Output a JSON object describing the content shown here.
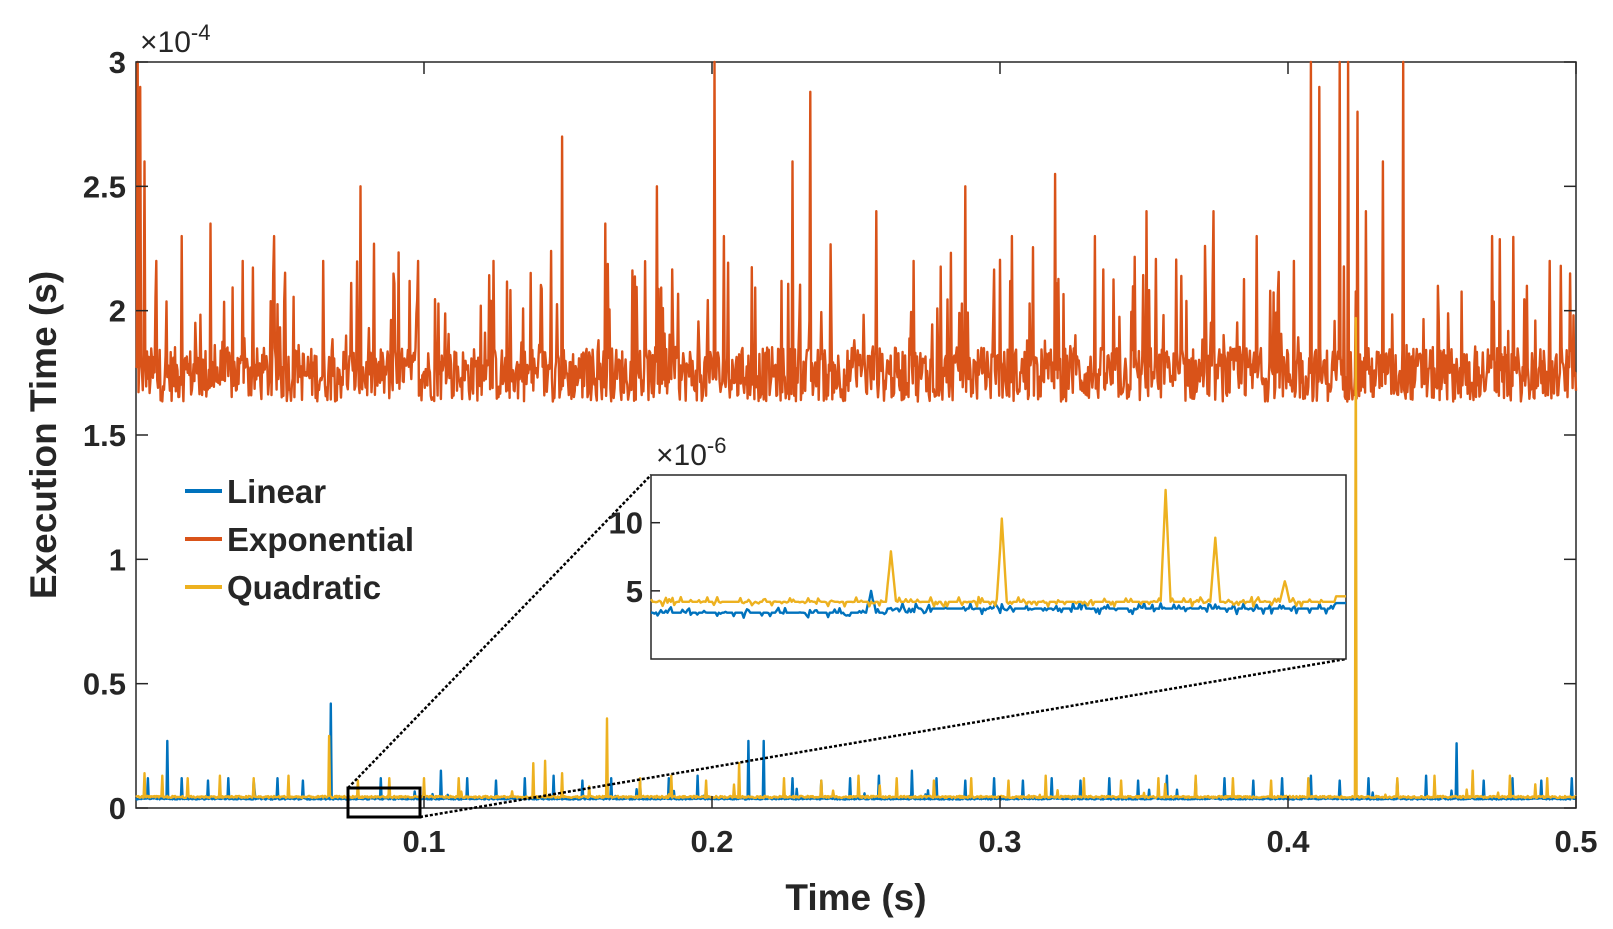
{
  "chart_data": {
    "type": "line",
    "title": "",
    "xlabel": "Time (s)",
    "ylabel": "Execution Time (s)",
    "xlim": [
      0,
      0.5
    ],
    "ylim": [
      0,
      0.0003
    ],
    "y_exponent_label": "×10",
    "y_exponent_power": "-4",
    "x_ticks": [
      0.1,
      0.2,
      0.3,
      0.4,
      0.5
    ],
    "x_tick_labels": [
      "0.1",
      "0.2",
      "0.3",
      "0.4",
      "0.5"
    ],
    "y_ticks": [
      0,
      5e-05,
      0.0001,
      0.00015,
      0.0002,
      0.00025,
      0.0003
    ],
    "y_tick_labels": [
      "0",
      "0.5",
      "1",
      "1.5",
      "2",
      "2.5",
      "3"
    ],
    "grid": false,
    "legend_position": "middle-left",
    "series": [
      {
        "name": "Linear",
        "color": "#0072BD",
        "baseline": 3.6e-06,
        "spikes": [
          [
            0.011,
            2.7e-05
          ],
          [
            0.004,
            1.2e-05
          ],
          [
            0.016,
            1.2e-05
          ],
          [
            0.025,
            1.1e-05
          ],
          [
            0.032,
            1.2e-05
          ],
          [
            0.041,
            1.1e-05
          ],
          [
            0.049,
            1.2e-05
          ],
          [
            0.058,
            1.1e-05
          ],
          [
            0.0675,
            4.2e-05
          ],
          [
            0.085,
            1.2e-05
          ],
          [
            0.106,
            1.5e-05
          ],
          [
            0.115,
            1.2e-05
          ],
          [
            0.125,
            1.1e-05
          ],
          [
            0.135,
            1.2e-05
          ],
          [
            0.145,
            1.3e-05
          ],
          [
            0.155,
            1.1e-05
          ],
          [
            0.165,
            1.2e-05
          ],
          [
            0.175,
            1.1e-05
          ],
          [
            0.185,
            1.2e-05
          ],
          [
            0.195,
            1.3e-05
          ],
          [
            0.2125,
            2.7e-05
          ],
          [
            0.218,
            2.7e-05
          ],
          [
            0.228,
            1.2e-05
          ],
          [
            0.238,
            1.1e-05
          ],
          [
            0.248,
            1.2e-05
          ],
          [
            0.258,
            1.3e-05
          ],
          [
            0.2695,
            1.5e-05
          ],
          [
            0.278,
            1.2e-05
          ],
          [
            0.288,
            1.1e-05
          ],
          [
            0.298,
            1.2e-05
          ],
          [
            0.308,
            1.1e-05
          ],
          [
            0.318,
            1.2e-05
          ],
          [
            0.328,
            1.1e-05
          ],
          [
            0.338,
            1.2e-05
          ],
          [
            0.348,
            1.1e-05
          ],
          [
            0.358,
            1.3e-05
          ],
          [
            0.368,
            1.1e-05
          ],
          [
            0.378,
            1.2e-05
          ],
          [
            0.388,
            1.1e-05
          ],
          [
            0.398,
            1.2e-05
          ],
          [
            0.408,
            1.3e-05
          ],
          [
            0.418,
            1.1e-05
          ],
          [
            0.428,
            1.2e-05
          ],
          [
            0.438,
            1.1e-05
          ],
          [
            0.448,
            1.3e-05
          ],
          [
            0.4585,
            2.6e-05
          ],
          [
            0.468,
            1.1e-05
          ],
          [
            0.478,
            1.2e-05
          ],
          [
            0.488,
            1.1e-05
          ],
          [
            0.4985,
            1.2e-05
          ]
        ]
      },
      {
        "name": "Exponential",
        "color": "#D95319",
        "baseline": 0.00017,
        "spikes": [
          [
            0.0005,
            0.0003
          ],
          [
            0.0015,
            0.00029
          ],
          [
            0.003,
            0.00026
          ],
          [
            0.007,
            0.00022
          ],
          [
            0.016,
            0.00023
          ],
          [
            0.026,
            0.000235
          ],
          [
            0.037,
            0.00022
          ],
          [
            0.048,
            0.00023
          ],
          [
            0.065,
            0.00022
          ],
          [
            0.078,
            0.00023
          ],
          [
            0.078,
            0.00025
          ],
          [
            0.098,
            0.00022
          ],
          [
            0.124,
            0.00022
          ],
          [
            0.148,
            0.00027
          ],
          [
            0.163,
            0.000235
          ],
          [
            0.181,
            0.00025
          ],
          [
            0.201,
            0.0003
          ],
          [
            0.204,
            0.00023
          ],
          [
            0.228,
            0.00026
          ],
          [
            0.234,
            0.000288
          ],
          [
            0.257,
            0.00024
          ],
          [
            0.27,
            0.00022
          ],
          [
            0.288,
            0.00025
          ],
          [
            0.304,
            0.00023
          ],
          [
            0.319,
            0.000255
          ],
          [
            0.333,
            0.00023
          ],
          [
            0.351,
            0.00024
          ],
          [
            0.374,
            0.00024
          ],
          [
            0.389,
            0.00023
          ],
          [
            0.402,
            0.00022
          ],
          [
            0.408,
            0.0003
          ],
          [
            0.411,
            0.00029
          ],
          [
            0.418,
            0.0003
          ],
          [
            0.421,
            0.0003
          ],
          [
            0.424,
            0.00028
          ],
          [
            0.427,
            0.00024
          ],
          [
            0.433,
            0.00026
          ],
          [
            0.44,
            0.0003
          ],
          [
            0.452,
            0.00021
          ],
          [
            0.471,
            0.00023
          ],
          [
            0.483,
            0.00021
          ],
          [
            0.491,
            0.00022
          ],
          [
            0.498,
            0.000215
          ]
        ]
      },
      {
        "name": "Quadratic",
        "color": "#EDB120",
        "baseline": 4.3e-06,
        "spikes": [
          [
            0.003,
            1.4e-05
          ],
          [
            0.009,
            1.3e-05
          ],
          [
            0.018,
            1.2e-05
          ],
          [
            0.029,
            1.3e-05
          ],
          [
            0.041,
            1.2e-05
          ],
          [
            0.053,
            1.3e-05
          ],
          [
            0.067,
            2.9e-05
          ],
          [
            0.077,
            1.1e-05
          ],
          [
            0.088,
            1.2e-05
          ],
          [
            0.1,
            1.2e-05
          ],
          [
            0.112,
            1.2e-05
          ],
          [
            0.138,
            1.8e-05
          ],
          [
            0.142,
            1.9e-05
          ],
          [
            0.148,
            1.4e-05
          ],
          [
            0.1635,
            3.6e-05
          ],
          [
            0.175,
            1.2e-05
          ],
          [
            0.186,
            1.3e-05
          ],
          [
            0.198,
            1.1e-05
          ],
          [
            0.2095,
            1.8e-05
          ],
          [
            0.225,
            1.2e-05
          ],
          [
            0.238,
            1.1e-05
          ],
          [
            0.251,
            1.3e-05
          ],
          [
            0.264,
            1.2e-05
          ],
          [
            0.277,
            1.1e-05
          ],
          [
            0.29,
            1.2e-05
          ],
          [
            0.303,
            1.1e-05
          ],
          [
            0.316,
            1.3e-05
          ],
          [
            0.329,
            1.2e-05
          ],
          [
            0.342,
            1.1e-05
          ],
          [
            0.355,
            1.2e-05
          ],
          [
            0.368,
            1.3e-05
          ],
          [
            0.381,
            1.2e-05
          ],
          [
            0.394,
            1.1e-05
          ],
          [
            0.407,
            1.2e-05
          ],
          [
            0.4235,
            0.000197
          ],
          [
            0.438,
            1.2e-05
          ],
          [
            0.451,
            1.3e-05
          ],
          [
            0.464,
            1.5e-05
          ],
          [
            0.477,
            1.3e-05
          ],
          [
            0.49,
            1.2e-05
          ]
        ]
      }
    ],
    "inset": {
      "x_range": [
        0.074,
        0.099
      ],
      "y_exponent_label": "×10",
      "y_exponent_power": "-6",
      "ylim": [
        0,
        1.35e-05
      ],
      "y_ticks": [
        5e-06,
        1e-05
      ],
      "y_tick_labels": [
        "5",
        "10"
      ],
      "linear_baseline": 3.4e-06,
      "linear_level_after_spike": 3.7e-06,
      "quadratic_baseline": 4.2e-06,
      "quadratic_spikes": [
        [
          0.08265,
          7.9e-06
        ],
        [
          0.0866,
          1.03e-05
        ],
        [
          0.0925,
          1.24e-05
        ],
        [
          0.0943,
          8.9e-06
        ],
        [
          0.0968,
          5.7e-06
        ]
      ],
      "linear_spikes": [
        [
          0.0819,
          5e-06
        ]
      ]
    }
  }
}
